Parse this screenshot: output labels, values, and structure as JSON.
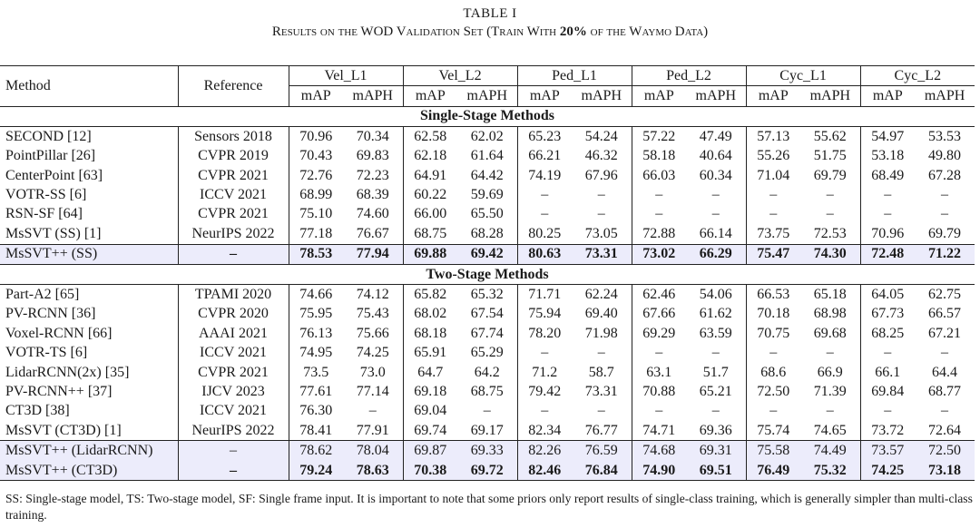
{
  "caption": {
    "label": "TABLE I",
    "pre": "Results on the WOD Validation Set (Train With ",
    "bold": "20%",
    "post": " of the Waymo Data)"
  },
  "headers": {
    "method": "Method",
    "reference": "Reference",
    "groups": [
      "Vel_L1",
      "Vel_L2",
      "Ped_L1",
      "Ped_L2",
      "Cyc_L1",
      "Cyc_L2"
    ],
    "sub": [
      "mAP",
      "mAPH"
    ]
  },
  "sections": [
    {
      "title": "Single-Stage Methods",
      "rows": [
        {
          "method": "SECOND [12]",
          "ref": "Sensors 2018",
          "vals": [
            "70.96",
            "70.34",
            "62.58",
            "62.02",
            "65.23",
            "54.24",
            "57.22",
            "47.49",
            "57.13",
            "55.62",
            "54.97",
            "53.53"
          ]
        },
        {
          "method": "PointPillar [26]",
          "ref": "CVPR 2019",
          "vals": [
            "70.43",
            "69.83",
            "62.18",
            "61.64",
            "66.21",
            "46.32",
            "58.18",
            "40.64",
            "55.26",
            "51.75",
            "53.18",
            "49.80"
          ]
        },
        {
          "method": "CenterPoint [63]",
          "ref": "CVPR 2021",
          "vals": [
            "72.76",
            "72.23",
            "64.91",
            "64.42",
            "74.19",
            "67.96",
            "66.03",
            "60.34",
            "71.04",
            "69.79",
            "68.49",
            "67.28"
          ]
        },
        {
          "method": "VOTR-SS [6]",
          "ref": "ICCV 2021",
          "vals": [
            "68.99",
            "68.39",
            "60.22",
            "59.69",
            "–",
            "–",
            "–",
            "–",
            "–",
            "–",
            "–",
            "–"
          ]
        },
        {
          "method": "RSN-SF [64]",
          "ref": "CVPR 2021",
          "vals": [
            "75.10",
            "74.60",
            "66.00",
            "65.50",
            "–",
            "–",
            "–",
            "–",
            "–",
            "–",
            "–",
            "–"
          ]
        },
        {
          "method": "MsSVT (SS) [1]",
          "ref": "NeurIPS 2022",
          "vals": [
            "77.18",
            "76.67",
            "68.75",
            "68.28",
            "80.25",
            "73.05",
            "72.88",
            "66.14",
            "73.75",
            "72.53",
            "70.96",
            "69.79"
          ]
        },
        {
          "method": "MsSVT++ (SS)",
          "ref": "–",
          "vals": [
            "78.53",
            "77.94",
            "69.88",
            "69.42",
            "80.63",
            "73.31",
            "73.02",
            "66.29",
            "75.47",
            "74.30",
            "72.48",
            "71.22"
          ],
          "highlight": true,
          "bold": true
        }
      ]
    },
    {
      "title": "Two-Stage Methods",
      "rows": [
        {
          "method": "Part-A2 [65]",
          "ref": "TPAMI 2020",
          "vals": [
            "74.66",
            "74.12",
            "65.82",
            "65.32",
            "71.71",
            "62.24",
            "62.46",
            "54.06",
            "66.53",
            "65.18",
            "64.05",
            "62.75"
          ]
        },
        {
          "method": "PV-RCNN [36]",
          "ref": "CVPR 2020",
          "vals": [
            "75.95",
            "75.43",
            "68.02",
            "67.54",
            "75.94",
            "69.40",
            "67.66",
            "61.62",
            "70.18",
            "68.98",
            "67.73",
            "66.57"
          ]
        },
        {
          "method": "Voxel-RCNN [66]",
          "ref": "AAAI 2021",
          "vals": [
            "76.13",
            "75.66",
            "68.18",
            "67.74",
            "78.20",
            "71.98",
            "69.29",
            "63.59",
            "70.75",
            "69.68",
            "68.25",
            "67.21"
          ]
        },
        {
          "method": "VOTR-TS [6]",
          "ref": "ICCV 2021",
          "vals": [
            "74.95",
            "74.25",
            "65.91",
            "65.29",
            "–",
            "–",
            "–",
            "–",
            "–",
            "–",
            "–",
            "–"
          ]
        },
        {
          "method": "LidarRCNN(2x) [35]",
          "ref": "CVPR 2021",
          "vals": [
            "73.5",
            "73.0",
            "64.7",
            "64.2",
            "71.2",
            "58.7",
            "63.1",
            "51.7",
            "68.6",
            "66.9",
            "66.1",
            "64.4"
          ]
        },
        {
          "method": "PV-RCNN++ [37]",
          "ref": "IJCV 2023",
          "vals": [
            "77.61",
            "77.14",
            "69.18",
            "68.75",
            "79.42",
            "73.31",
            "70.88",
            "65.21",
            "72.50",
            "71.39",
            "69.84",
            "68.77"
          ]
        },
        {
          "method": "CT3D [38]",
          "ref": "ICCV 2021",
          "vals": [
            "76.30",
            "–",
            "69.04",
            "–",
            "–",
            "–",
            "–",
            "–",
            "–",
            "–",
            "–",
            "–"
          ]
        },
        {
          "method": "MsSVT (CT3D) [1]",
          "ref": "NeurIPS 2022",
          "vals": [
            "78.41",
            "77.91",
            "69.74",
            "69.17",
            "82.34",
            "76.77",
            "74.71",
            "69.36",
            "75.74",
            "74.65",
            "73.72",
            "72.64"
          ]
        },
        {
          "method": "MsSVT++ (LidarRCNN)",
          "ref": "–",
          "vals": [
            "78.62",
            "78.04",
            "69.87",
            "69.33",
            "82.26",
            "76.59",
            "74.68",
            "69.31",
            "75.58",
            "74.49",
            "73.57",
            "72.50"
          ],
          "highlight": true
        },
        {
          "method": "MsSVT++ (CT3D)",
          "ref": "–",
          "vals": [
            "79.24",
            "78.63",
            "70.38",
            "69.72",
            "82.46",
            "76.84",
            "74.90",
            "69.51",
            "76.49",
            "75.32",
            "74.25",
            "73.18"
          ],
          "highlight": true,
          "bold": true
        }
      ]
    }
  ],
  "footnote": "SS: Single-stage model, TS: Two-stage model, SF: Single frame input. It is important to note that some priors only report results of single-class training, which is generally simpler than multi-class training."
}
